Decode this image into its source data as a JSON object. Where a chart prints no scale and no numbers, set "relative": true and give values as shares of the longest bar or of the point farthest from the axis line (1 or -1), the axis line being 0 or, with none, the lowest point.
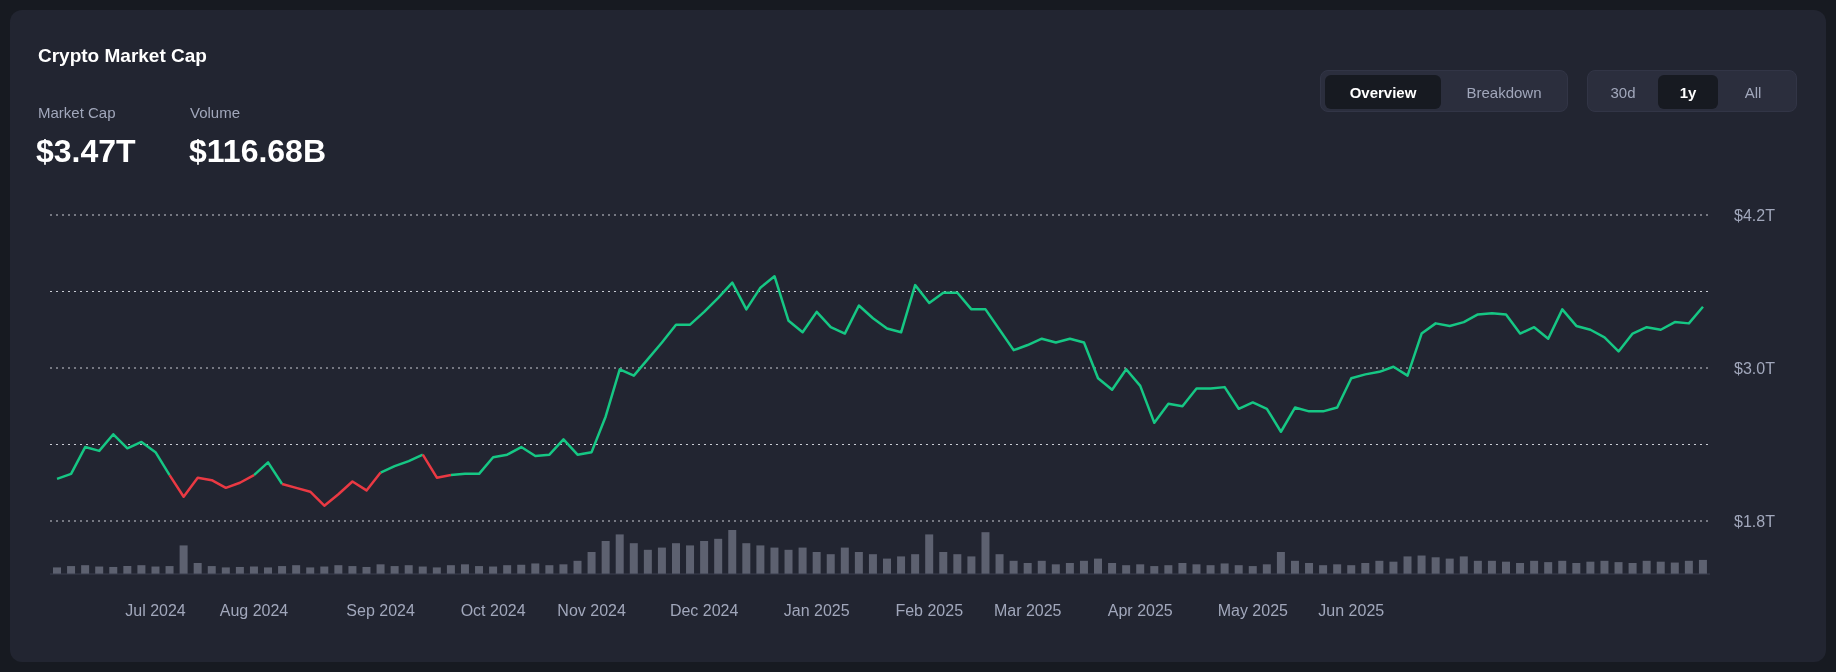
{
  "chart_data": [
    {
      "type": "line",
      "title": "Crypto Market Cap",
      "annotations": [
        "Market Cap",
        "$3.47T",
        "Volume",
        "$116.68B",
        "Overview",
        "Breakdown",
        "30d",
        "1y",
        "All"
      ],
      "categories": [
        null,
        null,
        null,
        null,
        null,
        null,
        null,
        "Jul 2024",
        null,
        null,
        null,
        null,
        null,
        null,
        "Aug 2024",
        null,
        null,
        null,
        null,
        null,
        null,
        null,
        null,
        "Sep 2024",
        null,
        null,
        null,
        null,
        null,
        null,
        null,
        "Oct 2024",
        null,
        null,
        null,
        null,
        null,
        null,
        "Nov 2024",
        null,
        null,
        null,
        null,
        null,
        null,
        null,
        "Dec 2024",
        null,
        null,
        null,
        null,
        null,
        null,
        null,
        "Jan 2025",
        null,
        null,
        null,
        null,
        null,
        null,
        null,
        "Feb 2025",
        null,
        null,
        null,
        null,
        null,
        null,
        "Mar 2025",
        null,
        null,
        null,
        null,
        null,
        null,
        null,
        "Apr 2025",
        null,
        null,
        null,
        null,
        null,
        null,
        null,
        "May 2025",
        null,
        null,
        null,
        null,
        null,
        null,
        "Jun 2025",
        null,
        null,
        null,
        null,
        null,
        null,
        null,
        null,
        null,
        null,
        null,
        null,
        null,
        null,
        null,
        null,
        null,
        null,
        null,
        null,
        null,
        null,
        null,
        null,
        null
      ],
      "series": [
        {
          "color": "#16c784",
          "values": [
            2.13,
            2.17,
            2.38,
            2.35,
            2.48,
            2.37,
            2.42,
            2.34,
            2.16,
            null,
            null,
            null,
            null,
            null,
            2.16,
            2.26,
            2.09,
            null,
            null,
            null,
            null,
            null,
            null,
            2.18,
            2.23,
            2.27,
            2.32,
            null,
            2.16,
            2.17,
            2.17,
            2.3,
            2.32,
            2.38,
            2.31,
            2.32,
            2.44,
            2.32,
            2.34,
            2.62,
            2.99,
            2.94,
            3.07,
            3.2,
            3.34,
            3.34,
            3.44,
            3.55,
            3.67,
            3.46,
            3.63,
            3.72,
            3.37,
            3.28,
            3.44,
            3.32,
            3.27,
            3.49,
            3.39,
            3.31,
            3.28,
            3.65,
            3.51,
            3.59,
            3.59,
            3.46,
            3.46,
            3.3,
            3.14,
            3.18,
            3.23,
            3.2,
            3.23,
            3.2,
            2.92,
            2.83,
            2.99,
            2.86,
            2.57,
            2.72,
            2.7,
            2.84,
            2.84,
            2.85,
            2.68,
            2.73,
            2.68,
            2.5,
            2.69,
            2.66,
            2.66,
            2.69,
            2.92,
            2.95,
            2.97,
            3.01,
            2.94,
            3.27,
            3.35,
            3.33,
            3.36,
            3.42,
            3.43,
            3.42,
            3.27,
            3.32,
            3.23,
            3.46,
            3.33,
            3.3,
            3.24,
            3.13,
            3.27,
            3.32,
            3.3,
            3.36,
            3.35,
            3.48
          ]
        },
        {
          "color": "#ea3943",
          "values": [
            null,
            null,
            null,
            null,
            null,
            null,
            null,
            null,
            2.16,
            1.99,
            2.14,
            2.12,
            2.06,
            2.1,
            2.16,
            null,
            2.09,
            2.06,
            2.03,
            1.92,
            2.01,
            2.11,
            2.04,
            2.18,
            null,
            null,
            2.32,
            2.14,
            2.16,
            null,
            null,
            null,
            null,
            null,
            null,
            null,
            null,
            null,
            null,
            null,
            null,
            null,
            null,
            null,
            null,
            null,
            null,
            null,
            null,
            null,
            null,
            null,
            null,
            null,
            null,
            null,
            null,
            null,
            null,
            null,
            null,
            null,
            null,
            null,
            null,
            null,
            null,
            null,
            null,
            null,
            null,
            null,
            null,
            null,
            null,
            null,
            null,
            null,
            null,
            null,
            null,
            null,
            null,
            null,
            null,
            null,
            null,
            null,
            null,
            null,
            null,
            null,
            null,
            null,
            null,
            null,
            null,
            null,
            null,
            null,
            null,
            null,
            null,
            null,
            null,
            null,
            null,
            null,
            null,
            null,
            null,
            null,
            null,
            null,
            null,
            null,
            null,
            null
          ]
        }
      ],
      "ylim": [
        1.8,
        4.2
      ],
      "yticks": [
        {
          "value": 1.8,
          "label": "$1.8T"
        },
        {
          "value": 2.4,
          "label": null
        },
        {
          "value": 3.0,
          "label": "$3.0T"
        },
        {
          "value": 3.6,
          "label": null
        },
        {
          "value": 4.2,
          "label": "$4.2T"
        }
      ],
      "grid": "y",
      "legend": false,
      "marker": "none",
      "line_style": "solid"
    },
    {
      "type": "bar",
      "relative": true,
      "color": "#5d6170",
      "categories": [
        null,
        null,
        null,
        null,
        null,
        null,
        null,
        null,
        null,
        null,
        null,
        null,
        null,
        null,
        null,
        null,
        null,
        null,
        null,
        null,
        null,
        null,
        null,
        null,
        null,
        null,
        null,
        null,
        null,
        null,
        null,
        null,
        null,
        null,
        null,
        null,
        null,
        null,
        null,
        null,
        null,
        null,
        null,
        null,
        null,
        null,
        null,
        null,
        null,
        null,
        null,
        null,
        null,
        null,
        null,
        null,
        null,
        null,
        null,
        null,
        null,
        null,
        null,
        null,
        null,
        null,
        null,
        null,
        null,
        null,
        null,
        null,
        null,
        null,
        null,
        null,
        null,
        null,
        null,
        null,
        null,
        null,
        null,
        null,
        null,
        null,
        null,
        null,
        null,
        null,
        null,
        null,
        null,
        null,
        null,
        null,
        null,
        null,
        null,
        null,
        null,
        null,
        null,
        null,
        null,
        null,
        null,
        null,
        null,
        null,
        null,
        null,
        null,
        null,
        null,
        null,
        null,
        null
      ],
      "values": [
        0.15,
        0.18,
        0.2,
        0.17,
        0.16,
        0.18,
        0.2,
        0.17,
        0.18,
        0.65,
        0.25,
        0.18,
        0.15,
        0.16,
        0.17,
        0.15,
        0.18,
        0.2,
        0.15,
        0.17,
        0.2,
        0.18,
        0.16,
        0.22,
        0.18,
        0.2,
        0.17,
        0.15,
        0.2,
        0.22,
        0.18,
        0.17,
        0.2,
        0.21,
        0.24,
        0.2,
        0.22,
        0.3,
        0.5,
        0.75,
        0.9,
        0.7,
        0.55,
        0.6,
        0.7,
        0.65,
        0.75,
        0.8,
        1.0,
        0.7,
        0.65,
        0.6,
        0.55,
        0.6,
        0.5,
        0.45,
        0.6,
        0.5,
        0.45,
        0.35,
        0.4,
        0.45,
        0.9,
        0.5,
        0.45,
        0.4,
        0.95,
        0.45,
        0.3,
        0.25,
        0.3,
        0.22,
        0.25,
        0.3,
        0.35,
        0.25,
        0.2,
        0.22,
        0.18,
        0.2,
        0.25,
        0.22,
        0.2,
        0.24,
        0.2,
        0.18,
        0.22,
        0.5,
        0.3,
        0.25,
        0.2,
        0.22,
        0.2,
        0.25,
        0.3,
        0.28,
        0.4,
        0.42,
        0.38,
        0.35,
        0.4,
        0.3,
        0.3,
        0.28,
        0.25,
        0.3,
        0.27,
        0.3,
        0.25,
        0.28,
        0.3,
        0.27,
        0.25,
        0.3,
        0.28,
        0.26,
        0.3,
        0.32
      ]
    }
  ]
}
